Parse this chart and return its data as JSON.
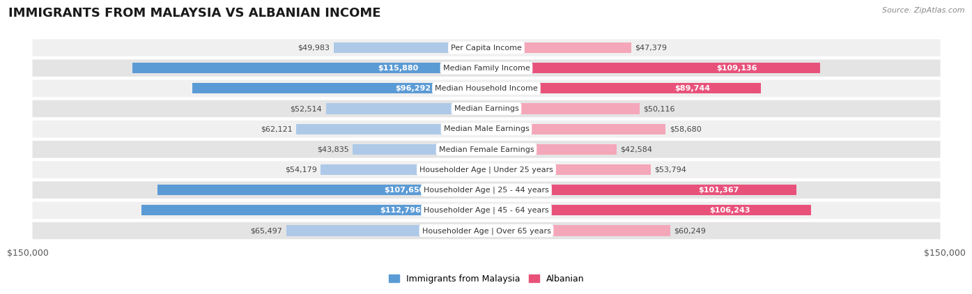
{
  "title": "IMMIGRANTS FROM MALAYSIA VS ALBANIAN INCOME",
  "source": "Source: ZipAtlas.com",
  "categories": [
    "Per Capita Income",
    "Median Family Income",
    "Median Household Income",
    "Median Earnings",
    "Median Male Earnings",
    "Median Female Earnings",
    "Householder Age | Under 25 years",
    "Householder Age | 25 - 44 years",
    "Householder Age | 45 - 64 years",
    "Householder Age | Over 65 years"
  ],
  "malaysia_values": [
    49983,
    115880,
    96292,
    52514,
    62121,
    43835,
    54179,
    107650,
    112796,
    65497
  ],
  "albanian_values": [
    47379,
    109136,
    89744,
    50116,
    58680,
    42584,
    53794,
    101367,
    106243,
    60249
  ],
  "malaysia_color_light": "#aec9e8",
  "malaysia_color_dark": "#5b9bd5",
  "albanian_color_light": "#f4a7b9",
  "albanian_color_dark": "#e8527a",
  "row_bg_even": "#f0f0f0",
  "row_bg_odd": "#e4e4e4",
  "max_value": 150000,
  "bar_height": 0.52,
  "inside_label_threshold": 70000,
  "legend_malaysia": "Immigrants from Malaysia",
  "legend_albanian": "Albanian",
  "x_label_left": "$150,000",
  "x_label_right": "$150,000",
  "title_fontsize": 13,
  "source_fontsize": 8,
  "cat_fontsize": 8,
  "val_fontsize": 8,
  "legend_fontsize": 9,
  "background_color": "#ffffff"
}
